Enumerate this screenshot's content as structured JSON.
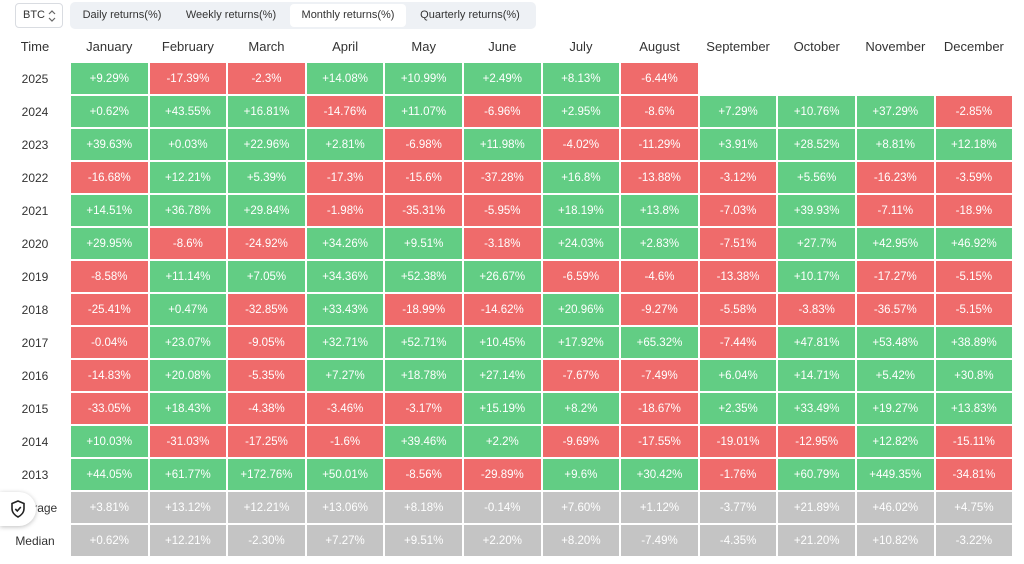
{
  "selector": {
    "label": "BTC"
  },
  "tabs": [
    {
      "label": "Daily returns(%)",
      "active": false
    },
    {
      "label": "Weekly returns(%)",
      "active": false
    },
    {
      "label": "Monthly returns(%)",
      "active": true
    },
    {
      "label": "Quarterly returns(%)",
      "active": false
    }
  ],
  "table": {
    "columns": [
      "Time",
      "January",
      "February",
      "March",
      "April",
      "May",
      "June",
      "July",
      "August",
      "September",
      "October",
      "November",
      "December"
    ],
    "colors": {
      "positive": "#62cd84",
      "negative": "#ef6b6b",
      "summary": "#c4c4c4"
    },
    "rows": [
      {
        "label": "2025",
        "values": [
          "+9.29%",
          "-17.39%",
          "-2.3%",
          "+14.08%",
          "+10.99%",
          "+2.49%",
          "+8.13%",
          "-6.44%"
        ]
      },
      {
        "label": "2024",
        "values": [
          "+0.62%",
          "+43.55%",
          "+16.81%",
          "-14.76%",
          "+11.07%",
          "-6.96%",
          "+2.95%",
          "-8.6%",
          "+7.29%",
          "+10.76%",
          "+37.29%",
          "-2.85%"
        ]
      },
      {
        "label": "2023",
        "values": [
          "+39.63%",
          "+0.03%",
          "+22.96%",
          "+2.81%",
          "-6.98%",
          "+11.98%",
          "-4.02%",
          "-11.29%",
          "+3.91%",
          "+28.52%",
          "+8.81%",
          "+12.18%"
        ]
      },
      {
        "label": "2022",
        "values": [
          "-16.68%",
          "+12.21%",
          "+5.39%",
          "-17.3%",
          "-15.6%",
          "-37.28%",
          "+16.8%",
          "-13.88%",
          "-3.12%",
          "+5.56%",
          "-16.23%",
          "-3.59%"
        ]
      },
      {
        "label": "2021",
        "values": [
          "+14.51%",
          "+36.78%",
          "+29.84%",
          "-1.98%",
          "-35.31%",
          "-5.95%",
          "+18.19%",
          "+13.8%",
          "-7.03%",
          "+39.93%",
          "-7.11%",
          "-18.9%"
        ]
      },
      {
        "label": "2020",
        "values": [
          "+29.95%",
          "-8.6%",
          "-24.92%",
          "+34.26%",
          "+9.51%",
          "-3.18%",
          "+24.03%",
          "+2.83%",
          "-7.51%",
          "+27.7%",
          "+42.95%",
          "+46.92%"
        ]
      },
      {
        "label": "2019",
        "values": [
          "-8.58%",
          "+11.14%",
          "+7.05%",
          "+34.36%",
          "+52.38%",
          "+26.67%",
          "-6.59%",
          "-4.6%",
          "-13.38%",
          "+10.17%",
          "-17.27%",
          "-5.15%"
        ]
      },
      {
        "label": "2018",
        "values": [
          "-25.41%",
          "+0.47%",
          "-32.85%",
          "+33.43%",
          "-18.99%",
          "-14.62%",
          "+20.96%",
          "-9.27%",
          "-5.58%",
          "-3.83%",
          "-36.57%",
          "-5.15%"
        ]
      },
      {
        "label": "2017",
        "values": [
          "-0.04%",
          "+23.07%",
          "-9.05%",
          "+32.71%",
          "+52.71%",
          "+10.45%",
          "+17.92%",
          "+65.32%",
          "-7.44%",
          "+47.81%",
          "+53.48%",
          "+38.89%"
        ]
      },
      {
        "label": "2016",
        "values": [
          "-14.83%",
          "+20.08%",
          "-5.35%",
          "+7.27%",
          "+18.78%",
          "+27.14%",
          "-7.67%",
          "-7.49%",
          "+6.04%",
          "+14.71%",
          "+5.42%",
          "+30.8%"
        ]
      },
      {
        "label": "2015",
        "values": [
          "-33.05%",
          "+18.43%",
          "-4.38%",
          "-3.46%",
          "-3.17%",
          "+15.19%",
          "+8.2%",
          "-18.67%",
          "+2.35%",
          "+33.49%",
          "+19.27%",
          "+13.83%"
        ]
      },
      {
        "label": "2014",
        "values": [
          "+10.03%",
          "-31.03%",
          "-17.25%",
          "-1.6%",
          "+39.46%",
          "+2.2%",
          "-9.69%",
          "-17.55%",
          "-19.01%",
          "-12.95%",
          "+12.82%",
          "-15.11%"
        ]
      },
      {
        "label": "2013",
        "values": [
          "+44.05%",
          "+61.77%",
          "+172.76%",
          "+50.01%",
          "-8.56%",
          "-29.89%",
          "+9.6%",
          "+30.42%",
          "-1.76%",
          "+60.79%",
          "+449.35%",
          "-34.81%"
        ]
      }
    ],
    "summary_rows": [
      {
        "label": "Average",
        "values": [
          "+3.81%",
          "+13.12%",
          "+12.21%",
          "+13.06%",
          "+8.18%",
          "-0.14%",
          "+7.60%",
          "+1.12%",
          "-3.77%",
          "+21.89%",
          "+46.02%",
          "+4.75%"
        ]
      },
      {
        "label": "Median",
        "values": [
          "+0.62%",
          "+12.21%",
          "-2.30%",
          "+7.27%",
          "+9.51%",
          "+2.20%",
          "+8.20%",
          "-7.49%",
          "-4.35%",
          "+21.20%",
          "+10.82%",
          "-3.22%"
        ]
      }
    ]
  }
}
